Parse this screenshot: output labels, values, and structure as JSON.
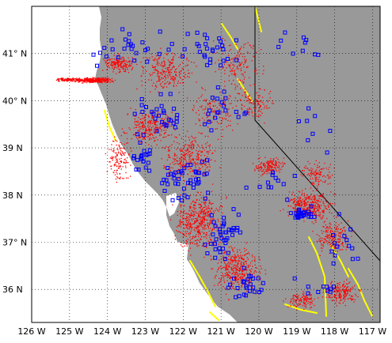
{
  "map": {
    "lon_range": [
      -126,
      -116.8
    ],
    "lat_range": [
      35.3,
      42.0
    ],
    "lat_ticks": [
      {
        "value": 41,
        "label": "41° N"
      },
      {
        "value": 40,
        "label": "40° N"
      },
      {
        "value": 39,
        "label": "39  N"
      },
      {
        "value": 38,
        "label": "38  N"
      },
      {
        "value": 37,
        "label": "37° N"
      },
      {
        "value": 36,
        "label": "36  N"
      }
    ],
    "lon_ticks": [
      {
        "value": -126,
        "label": "126  W"
      },
      {
        "value": -125,
        "label": "125  W"
      },
      {
        "value": -124,
        "label": "124  W"
      },
      {
        "value": -123,
        "label": "123  W"
      },
      {
        "value": -122,
        "label": "122  W"
      },
      {
        "value": -121,
        "label": "121  W"
      },
      {
        "value": -120,
        "label": "120  W"
      },
      {
        "value": -119,
        "label": "119  W"
      },
      {
        "value": -118,
        "label": "118  W"
      },
      {
        "value": -117,
        "label": "117  W"
      }
    ],
    "colors": {
      "land": "#999999",
      "ocean": "#ffffff",
      "quakes": "#ff0000",
      "stations": "#0000ff",
      "faults": "#ffff00",
      "border": "#000000",
      "grid": "#000000"
    },
    "grid": "dotted",
    "layers": [
      "land",
      "earthquake-epicenters",
      "seismic-stations",
      "faults",
      "state-border"
    ]
  }
}
